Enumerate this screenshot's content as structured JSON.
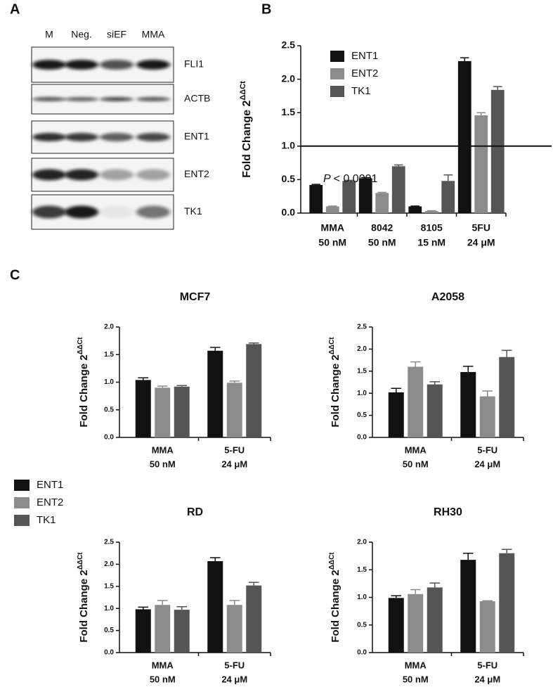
{
  "panel_labels": [
    "A",
    "B",
    "C"
  ],
  "blot": {
    "lanes": [
      "M",
      "Neg.",
      "siEF",
      "MMA"
    ],
    "rows": [
      "FLI1",
      "ACTB",
      "ENT1",
      "ENT2",
      "TK1"
    ]
  },
  "chart_data": [
    {
      "type": "bar",
      "ylabel": "Fold Change 2",
      "ylabel_sup": "ΔΔCt",
      "categories": [
        [
          "MMA",
          "50 nM"
        ],
        [
          "8042",
          "50 nM"
        ],
        [
          "8105",
          "15 nM"
        ],
        [
          "5FU",
          "24 μM"
        ]
      ],
      "series": [
        {
          "name": "ENT1",
          "color": "#111111",
          "values": [
            0.42,
            0.52,
            0.1,
            2.27
          ],
          "errors": [
            0.01,
            0.01,
            0.005,
            0.05
          ]
        },
        {
          "name": "ENT2",
          "color": "#8c8c8c",
          "values": [
            0.1,
            0.3,
            0.03,
            1.46
          ],
          "errors": [
            0.005,
            0.01,
            0.005,
            0.04
          ]
        },
        {
          "name": "TK1",
          "color": "#555555",
          "values": [
            0.48,
            0.7,
            0.48,
            1.84
          ],
          "errors": [
            0.01,
            0.02,
            0.09,
            0.05
          ]
        }
      ],
      "ylim": [
        0,
        2.5
      ],
      "yticks": [
        {
          "value": 0,
          "label": "0.0"
        },
        0.5,
        {
          "value": 1,
          "label": "1.0"
        },
        1.5,
        {
          "value": 2,
          "label": "2.0"
        },
        2.5
      ],
      "hline": 1,
      "annotation": {
        "italic": "P",
        "text": "< 0.0001"
      },
      "legend": "upper left"
    },
    {
      "type": "bar",
      "title": "MCF7",
      "ylabel": "Fold Change 2",
      "ylabel_sup": "ΔΔCt",
      "categories": [
        [
          "MMA",
          "50 nM"
        ],
        [
          "5-FU",
          "24 μM"
        ]
      ],
      "series": [
        {
          "name": "ENT1",
          "color": "#111111",
          "values": [
            1.04,
            1.57
          ],
          "errors": [
            0.04,
            0.06
          ]
        },
        {
          "name": "ENT2",
          "color": "#8c8c8c",
          "values": [
            0.9,
            0.99
          ],
          "errors": [
            0.03,
            0.03
          ]
        },
        {
          "name": "TK1",
          "color": "#555555",
          "values": [
            0.92,
            1.69
          ],
          "errors": [
            0.02,
            0.02
          ]
        }
      ],
      "ylim": [
        0,
        2
      ],
      "yticks": [
        {
          "value": 0,
          "label": "0.0"
        },
        0.5,
        {
          "value": 1,
          "label": "1.0"
        },
        1.5,
        {
          "value": 2,
          "label": "2.0"
        }
      ],
      "legend": "outside left"
    },
    {
      "type": "bar",
      "title": "A2058",
      "ylabel": "Fold Change 2",
      "ylabel_sup": "ΔΔCt",
      "categories": [
        [
          "MMA",
          "50 nM"
        ],
        [
          "5-FU",
          "24 μM"
        ]
      ],
      "series": [
        {
          "name": "ENT1",
          "color": "#111111",
          "values": [
            1.02,
            1.48
          ],
          "errors": [
            0.09,
            0.13
          ]
        },
        {
          "name": "ENT2",
          "color": "#8c8c8c",
          "values": [
            1.6,
            0.93
          ],
          "errors": [
            0.11,
            0.12
          ]
        },
        {
          "name": "TK1",
          "color": "#555555",
          "values": [
            1.2,
            1.82
          ],
          "errors": [
            0.06,
            0.15
          ]
        }
      ],
      "ylim": [
        0,
        2.5
      ],
      "yticks": [
        {
          "value": 0,
          "label": "0.0"
        },
        0.5,
        {
          "value": 1,
          "label": "1.0"
        },
        1.5,
        {
          "value": 2,
          "label": "2.0"
        },
        2.5
      ]
    },
    {
      "type": "bar",
      "title": "RD",
      "ylabel": "Fold Change 2",
      "ylabel_sup": "ΔΔCt",
      "categories": [
        [
          "MMA",
          "50 nM"
        ],
        [
          "5-FU",
          "24 μM"
        ]
      ],
      "series": [
        {
          "name": "ENT1",
          "color": "#111111",
          "values": [
            0.98,
            2.07
          ],
          "errors": [
            0.05,
            0.08
          ]
        },
        {
          "name": "ENT2",
          "color": "#8c8c8c",
          "values": [
            1.08,
            1.08
          ],
          "errors": [
            0.1,
            0.1
          ]
        },
        {
          "name": "TK1",
          "color": "#555555",
          "values": [
            0.97,
            1.52
          ],
          "errors": [
            0.07,
            0.07
          ]
        }
      ],
      "ylim": [
        0,
        2.5
      ],
      "yticks": [
        {
          "value": 0,
          "label": "0.0"
        },
        0.5,
        {
          "value": 1,
          "label": "1.0"
        },
        1.5,
        {
          "value": 2,
          "label": "2.0"
        },
        2.5
      ]
    },
    {
      "type": "bar",
      "title": "RH30",
      "ylabel": "Fold Change 2",
      "ylabel_sup": "ΔΔCt",
      "categories": [
        [
          "MMA",
          "50 nM"
        ],
        [
          "5-FU",
          "24 μM"
        ]
      ],
      "series": [
        {
          "name": "ENT1",
          "color": "#111111",
          "values": [
            0.99,
            1.68
          ],
          "errors": [
            0.04,
            0.12
          ]
        },
        {
          "name": "ENT2",
          "color": "#8c8c8c",
          "values": [
            1.06,
            0.93
          ],
          "errors": [
            0.08,
            0.01
          ]
        },
        {
          "name": "TK1",
          "color": "#555555",
          "values": [
            1.18,
            1.8
          ],
          "errors": [
            0.08,
            0.07
          ]
        }
      ],
      "ylim": [
        0,
        2
      ],
      "yticks": [
        {
          "value": 0,
          "label": "0.0"
        },
        0.5,
        {
          "value": 1,
          "label": "1.0"
        },
        1.5,
        {
          "value": 2,
          "label": "2.0"
        }
      ]
    }
  ]
}
